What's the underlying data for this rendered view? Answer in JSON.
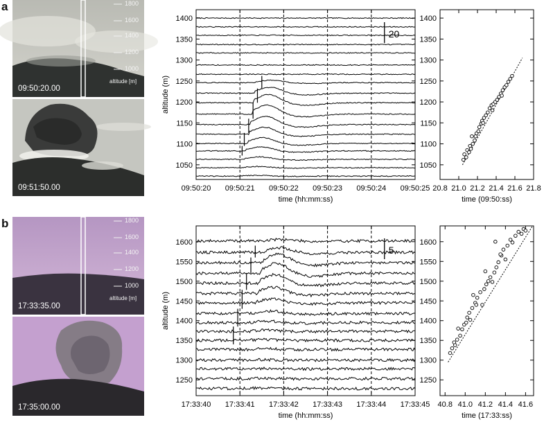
{
  "panels": [
    {
      "letter": "a",
      "photos": [
        {
          "timestamp": "09:50:20.00",
          "scale_labels": [
            "1800",
            "1600",
            "1400",
            "1200",
            "1000"
          ],
          "scale_unit": "altitude [m]"
        },
        {
          "timestamp": "09:51:50.00"
        }
      ]
    },
    {
      "letter": "b",
      "photos": [
        {
          "timestamp": "17:33:35.00",
          "scale_labels": [
            "1800",
            "1600",
            "1400",
            "1200",
            "1000"
          ],
          "scale_unit": "altitude [m]"
        },
        {
          "timestamp": "17:35:00.00"
        }
      ]
    }
  ],
  "colors": {
    "sky_a": "#c9c9c0",
    "sky_b": "#c8a8d4",
    "plume": "#3a3a3a",
    "ground": "#2c2e2c"
  },
  "chart_data": [
    {
      "type": "line",
      "panel": "a",
      "xlabel": "time (hh:mm:ss)",
      "ylabel": "altitude (m)",
      "xticks": [
        "09:50:20",
        "09:50:21",
        "09:50:22",
        "09:50:23",
        "09:50:24",
        "09:50:25"
      ],
      "xlim": [
        0,
        5
      ],
      "ylim": [
        1015,
        1420
      ],
      "yticks": [
        1050,
        1100,
        1150,
        1200,
        1250,
        1300,
        1350,
        1400
      ],
      "dashed_x": [
        1,
        2,
        3,
        4
      ],
      "scale_bar_label": "20",
      "trace_baselines": [
        1400,
        1379,
        1359,
        1337,
        1317,
        1288,
        1266,
        1246,
        1221,
        1198,
        1171,
        1146,
        1123,
        1101,
        1083,
        1063,
        1043,
        1023
      ],
      "trace_peaks": [
        0,
        0,
        0,
        0,
        0,
        0,
        0,
        6,
        14,
        20,
        22,
        20,
        17,
        14,
        10,
        6,
        3,
        2
      ],
      "wave_front": [
        [
          21.05,
          1072
        ],
        [
          21.1,
          1095
        ],
        [
          21.2,
          1126
        ],
        [
          21.3,
          1160
        ],
        [
          21.4,
          1198
        ],
        [
          21.5,
          1232
        ],
        [
          21.6,
          1262
        ]
      ]
    },
    {
      "type": "scatter",
      "panel": "a",
      "xlabel": "time (09:50:ss)",
      "xticks": [
        "20.8",
        "21.0",
        "21.2",
        "21.4",
        "21.6",
        "21.8"
      ],
      "xlim": [
        20.8,
        21.8
      ],
      "ylim": [
        1015,
        1420
      ],
      "yticks": [
        1050,
        1100,
        1150,
        1200,
        1250,
        1300,
        1350,
        1400
      ],
      "fit_line": [
        [
          21.04,
          1050
        ],
        [
          21.68,
          1305
        ]
      ],
      "points": [
        [
          21.05,
          1062
        ],
        [
          21.06,
          1075
        ],
        [
          21.08,
          1068
        ],
        [
          21.09,
          1085
        ],
        [
          21.11,
          1080
        ],
        [
          21.12,
          1095
        ],
        [
          21.13,
          1088
        ],
        [
          21.15,
          1100
        ],
        [
          21.17,
          1108
        ],
        [
          21.18,
          1118
        ],
        [
          21.19,
          1125
        ],
        [
          21.21,
          1130
        ],
        [
          21.22,
          1140
        ],
        [
          21.24,
          1148
        ],
        [
          21.25,
          1155
        ],
        [
          21.27,
          1162
        ],
        [
          21.29,
          1168
        ],
        [
          21.31,
          1175
        ],
        [
          21.33,
          1185
        ],
        [
          21.35,
          1192
        ],
        [
          21.37,
          1195
        ],
        [
          21.39,
          1200
        ],
        [
          21.41,
          1205
        ],
        [
          21.43,
          1212
        ],
        [
          21.45,
          1220
        ],
        [
          21.47,
          1228
        ],
        [
          21.49,
          1235
        ],
        [
          21.51,
          1240
        ],
        [
          21.53,
          1248
        ],
        [
          21.55,
          1255
        ],
        [
          21.57,
          1262
        ],
        [
          21.14,
          1118
        ],
        [
          21.26,
          1150
        ],
        [
          21.36,
          1180
        ],
        [
          21.46,
          1215
        ]
      ]
    },
    {
      "type": "line",
      "panel": "b",
      "xlabel": "time (hh:mm:ss)",
      "ylabel": "altitude (m)",
      "xticks": [
        "17:33:40",
        "17:33:41",
        "17:33:42",
        "17:33:43",
        "17:33:44",
        "17:33:45"
      ],
      "xlim": [
        0,
        5
      ],
      "ylim": [
        1210,
        1640
      ],
      "yticks": [
        1250,
        1300,
        1350,
        1400,
        1450,
        1500,
        1550,
        1600
      ],
      "dashed_x": [
        1,
        2,
        3,
        4
      ],
      "scale_bar_label": "5",
      "trace_baselines": [
        1602,
        1573,
        1547,
        1520,
        1495,
        1469,
        1445,
        1418,
        1395,
        1373,
        1350,
        1327,
        1300,
        1278,
        1253,
        1228
      ],
      "trace_peaks": [
        4,
        12,
        22,
        26,
        22,
        16,
        10,
        6,
        4,
        3,
        2,
        2,
        1,
        1,
        1,
        1
      ],
      "wave_front": [
        [
          40.85,
          1340
        ],
        [
          40.95,
          1385
        ],
        [
          41.05,
          1430
        ],
        [
          41.15,
          1478
        ],
        [
          41.25,
          1520
        ],
        [
          41.35,
          1560
        ],
        [
          41.45,
          1590
        ]
      ]
    },
    {
      "type": "scatter",
      "panel": "b",
      "xlabel": "time (17:33:ss)",
      "xticks": [
        "40.8",
        "41.0",
        "41.2",
        "41.4",
        "41.6"
      ],
      "xlim": [
        40.75,
        41.68
      ],
      "ylim": [
        1210,
        1640
      ],
      "yticks": [
        1250,
        1300,
        1350,
        1400,
        1450,
        1500,
        1550,
        1600
      ],
      "fit_line": [
        [
          40.83,
          1295
        ],
        [
          41.67,
          1640
        ]
      ],
      "points": [
        [
          40.85,
          1318
        ],
        [
          40.87,
          1330
        ],
        [
          40.89,
          1345
        ],
        [
          40.9,
          1338
        ],
        [
          40.92,
          1352
        ],
        [
          40.95,
          1362
        ],
        [
          40.97,
          1378
        ],
        [
          40.99,
          1390
        ],
        [
          41.01,
          1395
        ],
        [
          41.02,
          1408
        ],
        [
          41.04,
          1420
        ],
        [
          41.05,
          1402
        ],
        [
          41.07,
          1432
        ],
        [
          41.08,
          1465
        ],
        [
          41.1,
          1445
        ],
        [
          41.12,
          1458
        ],
        [
          41.15,
          1472
        ],
        [
          41.17,
          1440
        ],
        [
          41.19,
          1480
        ],
        [
          41.21,
          1492
        ],
        [
          41.23,
          1500
        ],
        [
          41.25,
          1510
        ],
        [
          41.27,
          1498
        ],
        [
          41.29,
          1522
        ],
        [
          41.31,
          1535
        ],
        [
          41.33,
          1548
        ],
        [
          41.36,
          1565
        ],
        [
          41.38,
          1580
        ],
        [
          41.4,
          1555
        ],
        [
          41.42,
          1590
        ],
        [
          41.45,
          1605
        ],
        [
          41.47,
          1598
        ],
        [
          41.5,
          1615
        ],
        [
          41.53,
          1625
        ],
        [
          41.56,
          1620
        ],
        [
          41.58,
          1632
        ],
        [
          41.6,
          1628
        ],
        [
          41.3,
          1600
        ],
        [
          41.35,
          1568
        ],
        [
          40.93,
          1380
        ],
        [
          41.11,
          1440
        ],
        [
          41.2,
          1525
        ]
      ]
    }
  ]
}
